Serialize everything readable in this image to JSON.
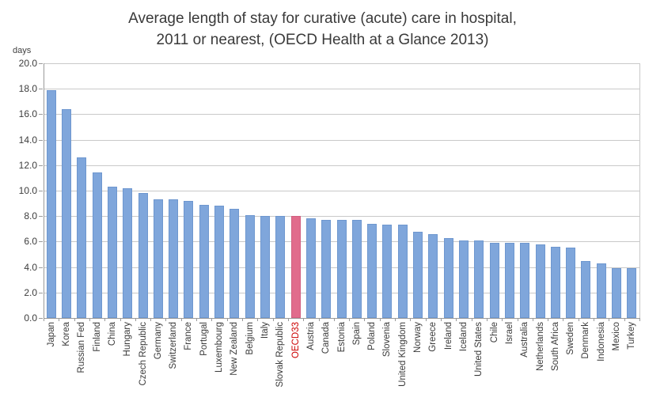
{
  "title": {
    "line1": "Average length of stay for curative (acute) care in hospital,",
    "line2": "2011 or nearest, (OECD Health at a Glance 2013)"
  },
  "y_axis": {
    "unit_label": "days",
    "ticks": [
      "20.0",
      "18.0",
      "16.0",
      "14.0",
      "12.0",
      "10.0",
      "8.0",
      "6.0",
      "4.0",
      "2.0",
      "0.0"
    ]
  },
  "chart_data": {
    "type": "bar",
    "title": "Average length of stay for curative (acute) care in hospital, 2011 or nearest, (OECD Health at a Glance 2013)",
    "xlabel": "",
    "ylabel": "days",
    "ylim": [
      0,
      20
    ],
    "ytick_step": 2,
    "grid": true,
    "legend": "none",
    "categories": [
      "Japan",
      "Korea",
      "Russian Fed",
      "Finland",
      "China",
      "Hungary",
      "Czech Republic",
      "Germany",
      "Switzerland",
      "France",
      "Portugal",
      "Luxembourg",
      "New Zealand",
      "Belgium",
      "Italy",
      "Slovak Republic",
      "OECD33",
      "Austria",
      "Canada",
      "Estonia",
      "Spain",
      "Poland",
      "Slovenia",
      "United Kingdom",
      "Norway",
      "Greece",
      "Ireland",
      "Iceland",
      "United States",
      "Chile",
      "Israel",
      "Australia",
      "Netherlands",
      "South Africa",
      "Sweden",
      "Denmark",
      "Indonesia",
      "Mexico",
      "Turkey"
    ],
    "values": [
      17.9,
      16.4,
      12.6,
      11.4,
      10.3,
      10.2,
      9.8,
      9.3,
      9.3,
      9.2,
      8.9,
      8.8,
      8.6,
      8.1,
      8.0,
      8.0,
      8.0,
      7.8,
      7.7,
      7.7,
      7.7,
      7.4,
      7.3,
      7.3,
      6.8,
      6.6,
      6.3,
      6.1,
      6.1,
      5.9,
      5.9,
      5.9,
      5.8,
      5.6,
      5.5,
      4.5,
      4.3,
      3.9,
      3.9
    ],
    "bar_color": "#7fa6db",
    "bar_border_color": "#6e97cf",
    "highlight": {
      "category": "OECD33",
      "index": 16,
      "bar_color": "#e16c8c",
      "bar_border_color": "#d15f80",
      "label_color": "#cc0000"
    },
    "gridline_color": "#c9c9c9",
    "axis_color": "#9a9a9a",
    "label_color": "#3a3a3a"
  }
}
